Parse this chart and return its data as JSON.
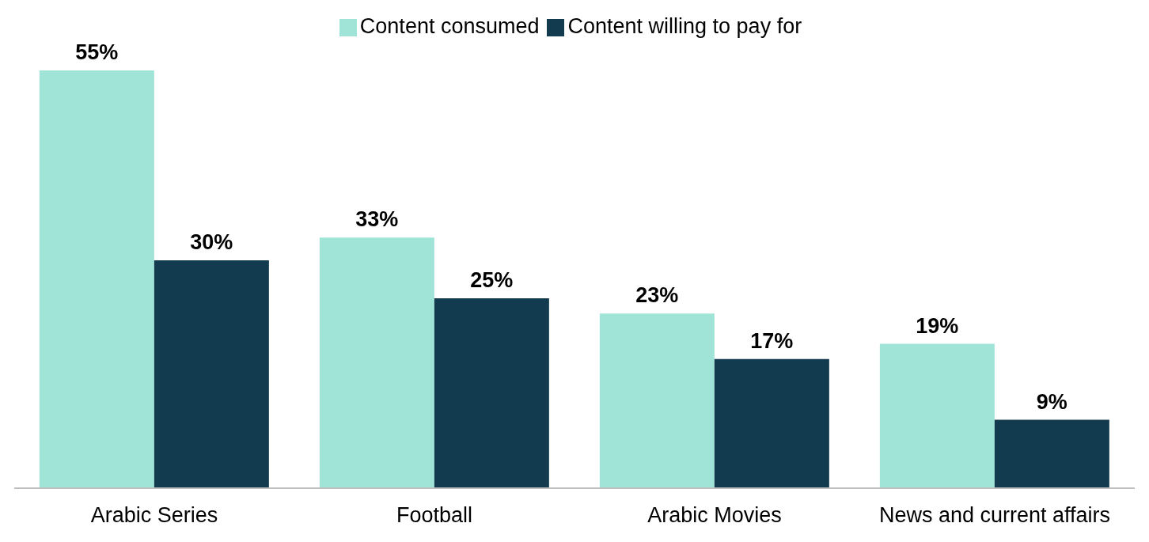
{
  "chart_data": {
    "type": "bar",
    "categories": [
      "Arabic Series",
      "Football",
      "Arabic Movies",
      "News and current affairs"
    ],
    "series": [
      {
        "name": "Content consumed",
        "color": "#a0e4d8",
        "values": [
          55,
          33,
          23,
          19
        ],
        "value_labels": [
          "55%",
          "33%",
          "23%",
          "19%"
        ]
      },
      {
        "name": "Content willing to pay for",
        "color": "#133b4f",
        "values": [
          30,
          25,
          17,
          9
        ],
        "value_labels": [
          "30%",
          "25%",
          "17%",
          "9%"
        ]
      }
    ],
    "grid": false,
    "legend": "top"
  }
}
